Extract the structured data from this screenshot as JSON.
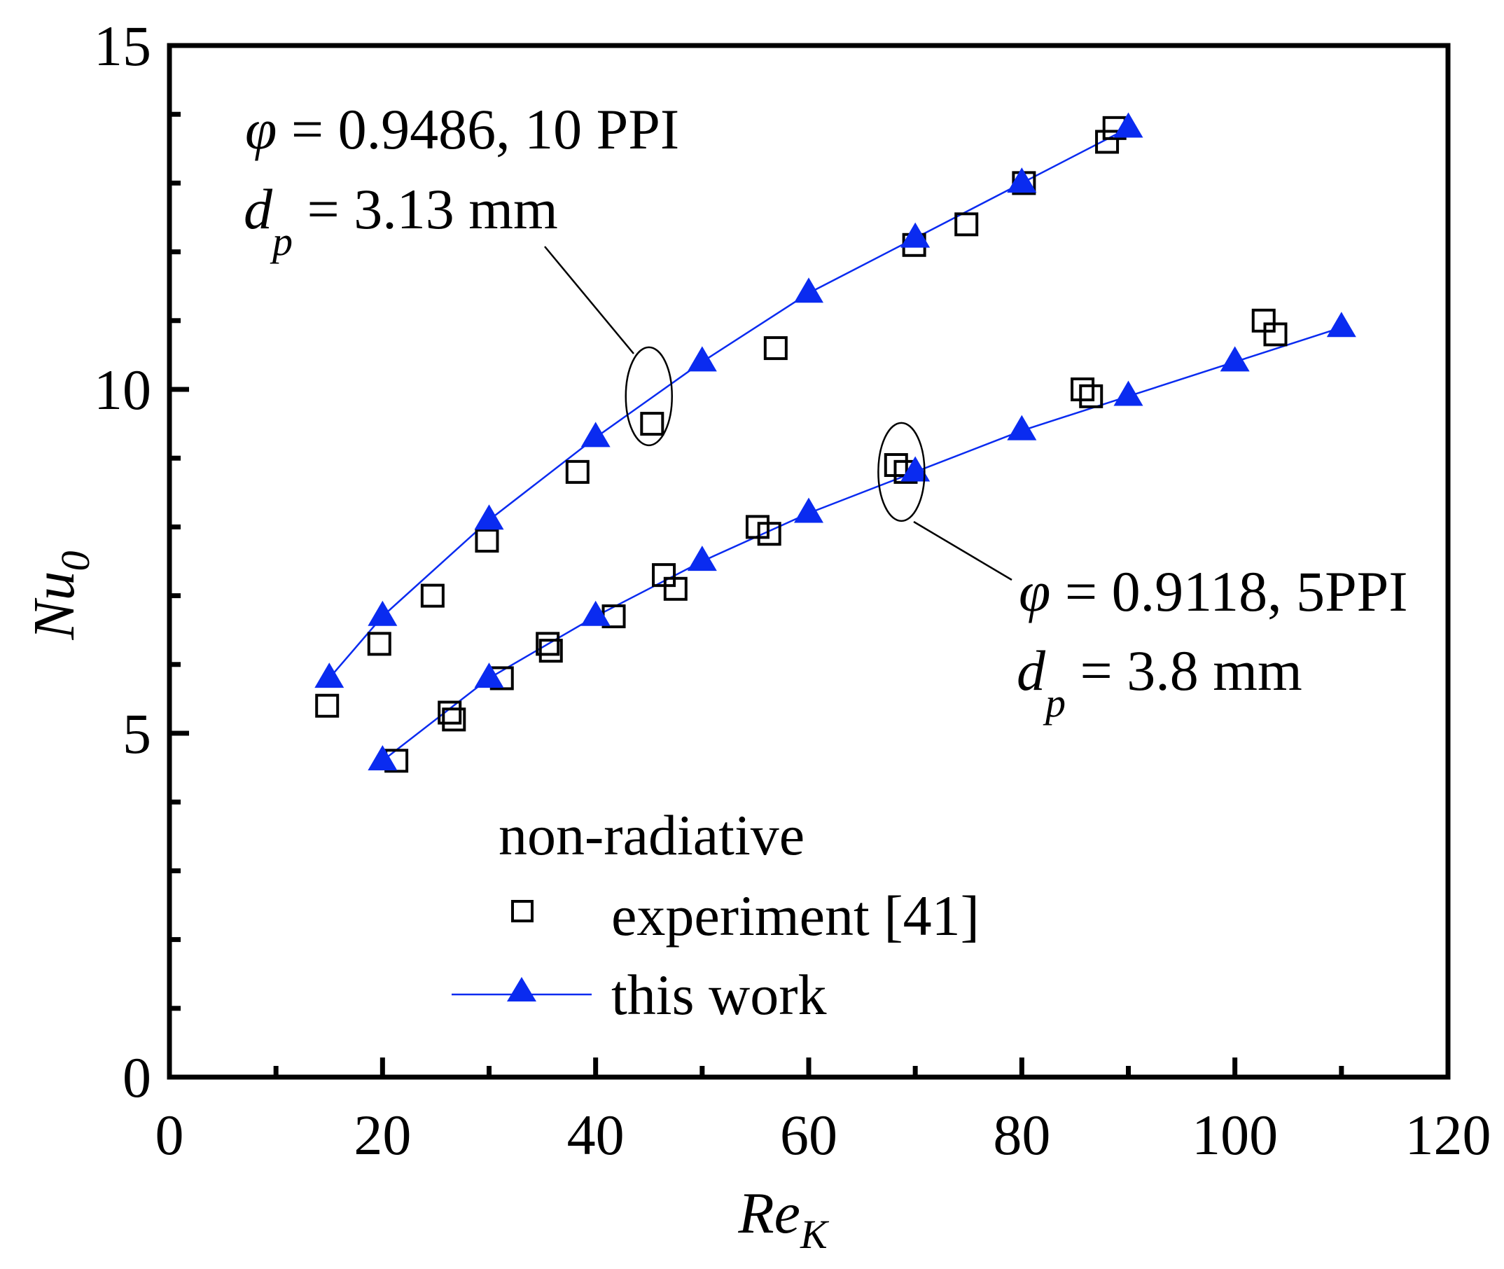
{
  "chart_data": {
    "type": "scatter",
    "title": "",
    "xlabel": {
      "main": "Re",
      "sub": "K"
    },
    "ylabel": {
      "main": "Nu",
      "sub": "0"
    },
    "xlim": [
      0,
      120
    ],
    "ylim": [
      0,
      15
    ],
    "xticks": [
      0,
      20,
      40,
      60,
      80,
      100,
      120
    ],
    "yticks": [
      0,
      5,
      10,
      15
    ],
    "xtick_labels": [
      "0",
      "20",
      "40",
      "60",
      "80",
      "100",
      "120"
    ],
    "ytick_labels": [
      "0",
      "5",
      "10",
      "15"
    ],
    "x_minor_step": 10,
    "y_minor_step": 1,
    "grid": false,
    "colors": {
      "experiment": "#000000",
      "model": "#0a2bf0"
    },
    "series": [
      {
        "name": "experiment [41]",
        "group": "10 PPI",
        "marker": "square",
        "points": [
          [
            14.8,
            5.4
          ],
          [
            19.7,
            6.3
          ],
          [
            24.7,
            7.0
          ],
          [
            29.8,
            7.8
          ],
          [
            38.3,
            8.8
          ],
          [
            45.3,
            9.5
          ],
          [
            56.9,
            10.6
          ],
          [
            69.9,
            12.1
          ],
          [
            74.8,
            12.4
          ],
          [
            80.2,
            13.0
          ],
          [
            88.0,
            13.6
          ],
          [
            88.7,
            13.8
          ]
        ]
      },
      {
        "name": "this work",
        "group": "10 PPI",
        "marker": "triangle",
        "points": [
          [
            15,
            5.8
          ],
          [
            20,
            6.7
          ],
          [
            30,
            8.1
          ],
          [
            40,
            9.3
          ],
          [
            50,
            10.4
          ],
          [
            60,
            11.4
          ],
          [
            70,
            12.2
          ],
          [
            80,
            13.0
          ],
          [
            90,
            13.8
          ]
        ]
      },
      {
        "name": "experiment [41]",
        "group": "5 PPI",
        "marker": "square",
        "points": [
          [
            21.3,
            4.6
          ],
          [
            26.3,
            5.3
          ],
          [
            26.7,
            5.2
          ],
          [
            31.2,
            5.8
          ],
          [
            35.5,
            6.3
          ],
          [
            35.8,
            6.2
          ],
          [
            41.7,
            6.7
          ],
          [
            46.4,
            7.3
          ],
          [
            47.5,
            7.1
          ],
          [
            55.2,
            8.0
          ],
          [
            56.3,
            7.9
          ],
          [
            68.2,
            8.9
          ],
          [
            69.1,
            8.8
          ],
          [
            85.7,
            10.0
          ],
          [
            86.5,
            9.9
          ],
          [
            102.7,
            11.0
          ],
          [
            103.8,
            10.8
          ]
        ]
      },
      {
        "name": "this work",
        "group": "5 PPI",
        "marker": "triangle",
        "points": [
          [
            20,
            4.6
          ],
          [
            30,
            5.8
          ],
          [
            40,
            6.7
          ],
          [
            50,
            7.5
          ],
          [
            60,
            8.2
          ],
          [
            70,
            8.8
          ],
          [
            80,
            9.4
          ],
          [
            90,
            9.9
          ],
          [
            100,
            10.4
          ],
          [
            110,
            10.9
          ]
        ]
      }
    ],
    "annotations": [
      {
        "id": "upper",
        "line1": {
          "phi": "φ",
          "text": " = 0.9486, 10 PPI"
        },
        "line2": {
          "d": "d",
          "sub": "p",
          "text": " = 3.13 mm"
        },
        "ellipse_center": [
          45,
          9.9
        ]
      },
      {
        "id": "lower",
        "line1": {
          "phi": "φ",
          "text": " = 0.9118, 5PPI"
        },
        "line2": {
          "d": "d",
          "sub": "p",
          "text": " = 3.8 mm"
        },
        "ellipse_center": [
          68.7,
          8.8
        ]
      }
    ],
    "legend": {
      "title": "non-radiative",
      "items": [
        {
          "label": "experiment [41]",
          "marker": "square"
        },
        {
          "label": "this work",
          "marker": "triangle-line"
        }
      ],
      "position": "bottom-center"
    }
  }
}
